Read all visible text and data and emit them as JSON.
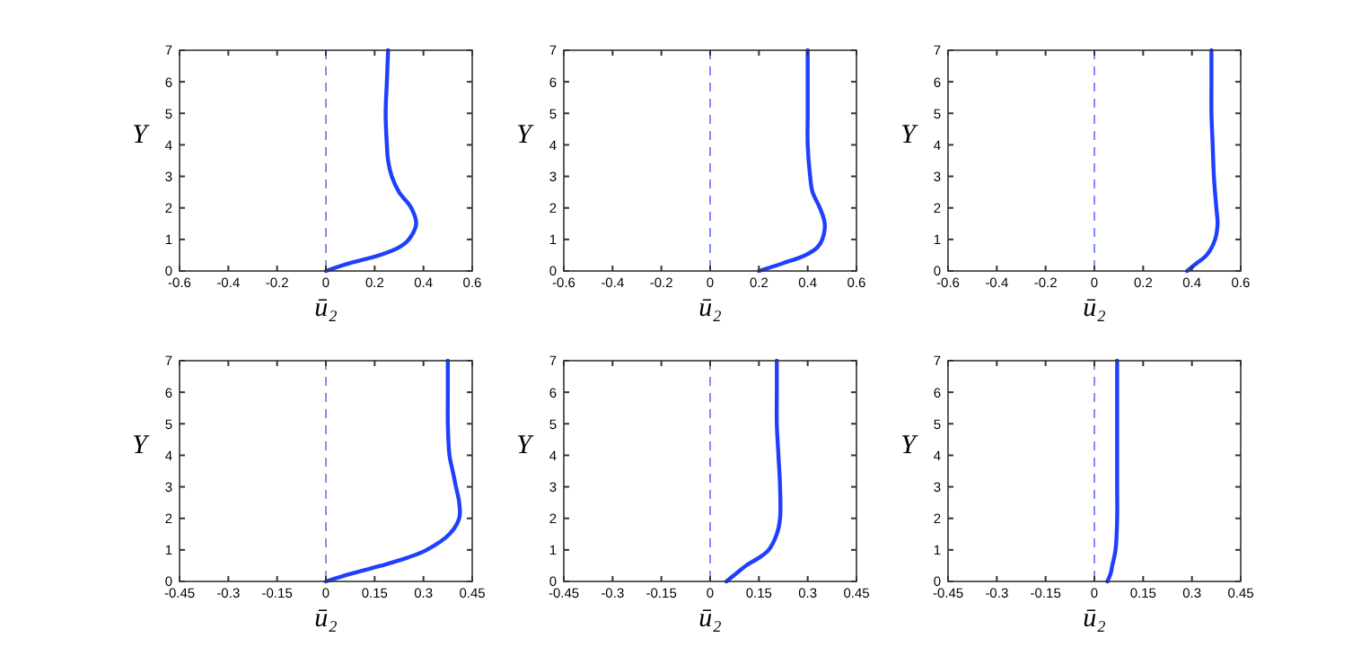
{
  "chart_data": [
    {
      "type": "line",
      "xlabel": "ū₂",
      "ylabel": "Y",
      "xlim": [
        -0.6,
        0.6
      ],
      "xticks": [
        -0.6,
        -0.4,
        -0.2,
        0,
        0.2,
        0.4,
        0.6
      ],
      "ylim": [
        0,
        7
      ],
      "yticks": [
        0,
        1,
        2,
        3,
        4,
        5,
        6,
        7
      ],
      "line_style": "solid",
      "ref_lines": [
        {
          "axis": "x",
          "value": 0,
          "color": "#7f8cff",
          "line_style": "dashed"
        }
      ],
      "series": [
        {
          "color": "#1f3fff",
          "x": [
            0,
            0.1,
            0.22,
            0.3,
            0.34,
            0.37,
            0.35,
            0.3,
            0.27,
            0.255,
            0.25,
            0.245,
            0.25,
            0.255
          ],
          "values": [
            0,
            0.25,
            0.5,
            0.75,
            1,
            1.5,
            2,
            2.5,
            3,
            3.5,
            4,
            5,
            6,
            7
          ]
        }
      ]
    },
    {
      "type": "line",
      "xlabel": "ū₂",
      "ylabel": "Y",
      "xlim": [
        -0.6,
        0.6
      ],
      "xticks": [
        -0.6,
        -0.4,
        -0.2,
        0,
        0.2,
        0.4,
        0.6
      ],
      "ylim": [
        0,
        7
      ],
      "yticks": [
        0,
        1,
        2,
        3,
        4,
        5,
        6,
        7
      ],
      "line_style": "solid",
      "ref_lines": [
        {
          "axis": "x",
          "value": 0,
          "color": "#7f8cff",
          "line_style": "dashed"
        }
      ],
      "series": [
        {
          "color": "#1f3fff",
          "x": [
            0.2,
            0.3,
            0.39,
            0.44,
            0.46,
            0.47,
            0.45,
            0.42,
            0.41,
            0.4,
            0.4,
            0.4,
            0.4
          ],
          "values": [
            0,
            0.25,
            0.5,
            0.75,
            1,
            1.5,
            2,
            2.5,
            3,
            4,
            5,
            6,
            7
          ]
        }
      ]
    },
    {
      "type": "line",
      "xlabel": "ū₂",
      "ylabel": "Y",
      "xlim": [
        -0.6,
        0.6
      ],
      "xticks": [
        -0.6,
        -0.4,
        -0.2,
        0,
        0.2,
        0.4,
        0.6
      ],
      "ylim": [
        0,
        7
      ],
      "yticks": [
        0,
        1,
        2,
        3,
        4,
        5,
        6,
        7
      ],
      "line_style": "solid",
      "ref_lines": [
        {
          "axis": "x",
          "value": 0,
          "color": "#7f8cff",
          "line_style": "dashed"
        }
      ],
      "series": [
        {
          "color": "#1f3fff",
          "x": [
            0.38,
            0.42,
            0.46,
            0.495,
            0.505,
            0.5,
            0.49,
            0.485,
            0.48,
            0.48,
            0.48
          ],
          "values": [
            0,
            0.25,
            0.5,
            1,
            1.5,
            2,
            3,
            4,
            5,
            6,
            7
          ]
        }
      ]
    },
    {
      "type": "line",
      "xlabel": "ū₂",
      "ylabel": "Y",
      "xlim": [
        -0.45,
        0.45
      ],
      "xticks": [
        -0.45,
        -0.3,
        -0.15,
        0,
        0.15,
        0.3,
        0.45
      ],
      "ylim": [
        0,
        7
      ],
      "yticks": [
        0,
        1,
        2,
        3,
        4,
        5,
        6,
        7
      ],
      "line_style": "solid",
      "ref_lines": [
        {
          "axis": "x",
          "value": 0,
          "color": "#7f8cff",
          "line_style": "dashed"
        }
      ],
      "series": [
        {
          "color": "#1f3fff",
          "x": [
            0,
            0.08,
            0.17,
            0.25,
            0.31,
            0.38,
            0.41,
            0.41,
            0.4,
            0.39,
            0.38,
            0.375,
            0.375,
            0.375
          ],
          "values": [
            0,
            0.25,
            0.5,
            0.75,
            1,
            1.5,
            2,
            2.5,
            3,
            3.5,
            4,
            5,
            6,
            7
          ]
        }
      ]
    },
    {
      "type": "line",
      "xlabel": "ū₂",
      "ylabel": "Y",
      "xlim": [
        -0.45,
        0.45
      ],
      "xticks": [
        -0.45,
        -0.3,
        -0.15,
        0,
        0.15,
        0.3,
        0.45
      ],
      "ylim": [
        0,
        7
      ],
      "yticks": [
        0,
        1,
        2,
        3,
        4,
        5,
        6,
        7
      ],
      "line_style": "solid",
      "ref_lines": [
        {
          "axis": "x",
          "value": 0,
          "color": "#7f8cff",
          "line_style": "dashed"
        }
      ],
      "series": [
        {
          "color": "#1f3fff",
          "x": [
            0.05,
            0.08,
            0.11,
            0.15,
            0.18,
            0.205,
            0.215,
            0.215,
            0.21,
            0.205,
            0.205,
            0.205
          ],
          "values": [
            0,
            0.25,
            0.5,
            0.75,
            1,
            1.5,
            2,
            3,
            4,
            5,
            6,
            7
          ]
        }
      ]
    },
    {
      "type": "line",
      "xlabel": "ū₂",
      "ylabel": "Y",
      "xlim": [
        -0.45,
        0.45
      ],
      "xticks": [
        -0.45,
        -0.3,
        -0.15,
        0,
        0.15,
        0.3,
        0.45
      ],
      "ylim": [
        0,
        7
      ],
      "yticks": [
        0,
        1,
        2,
        3,
        4,
        5,
        6,
        7
      ],
      "line_style": "solid",
      "ref_lines": [
        {
          "axis": "x",
          "value": 0,
          "color": "#7f8cff",
          "line_style": "dashed"
        }
      ],
      "series": [
        {
          "color": "#1f3fff",
          "x": [
            0.04,
            0.05,
            0.055,
            0.065,
            0.07,
            0.07,
            0.07,
            0.07
          ],
          "values": [
            0,
            0.25,
            0.5,
            1,
            2,
            3,
            5,
            7
          ]
        }
      ]
    }
  ]
}
